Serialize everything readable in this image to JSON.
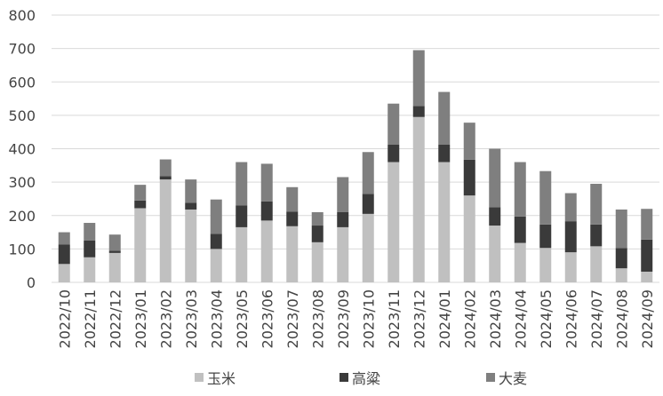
{
  "chart_data": {
    "type": "stacked_bar",
    "categories": [
      "2022/10",
      "2022/11",
      "2022/12",
      "2023/01",
      "2023/02",
      "2023/03",
      "2023/04",
      "2023/05",
      "2023/06",
      "2023/07",
      "2023/08",
      "2023/09",
      "2023/10",
      "2023/11",
      "2023/12",
      "2024/01",
      "2024/02",
      "2024/03",
      "2024/04",
      "2024/05",
      "2024/06",
      "2024/07",
      "2024/08",
      "2024/09"
    ],
    "series": [
      {
        "name": "玉米",
        "color": "#c0c0c0",
        "values": [
          55,
          75,
          88,
          222,
          308,
          218,
          100,
          165,
          185,
          168,
          120,
          165,
          205,
          360,
          495,
          360,
          260,
          170,
          118,
          103,
          90,
          108,
          42,
          32
        ]
      },
      {
        "name": "高粱",
        "color": "#3a3a3a",
        "values": [
          58,
          50,
          7,
          23,
          10,
          20,
          45,
          65,
          57,
          44,
          50,
          45,
          60,
          52,
          33,
          52,
          107,
          55,
          79,
          70,
          93,
          65,
          61,
          96
        ]
      },
      {
        "name": "大麦",
        "color": "#7f7f7f",
        "values": [
          37,
          53,
          48,
          47,
          50,
          70,
          103,
          130,
          113,
          73,
          40,
          105,
          125,
          123,
          167,
          158,
          111,
          175,
          163,
          160,
          84,
          122,
          115,
          92
        ]
      }
    ],
    "ylim": [
      0,
      800
    ],
    "yticks": [
      0,
      100,
      200,
      300,
      400,
      500,
      600,
      700,
      800
    ],
    "grid": true
  }
}
